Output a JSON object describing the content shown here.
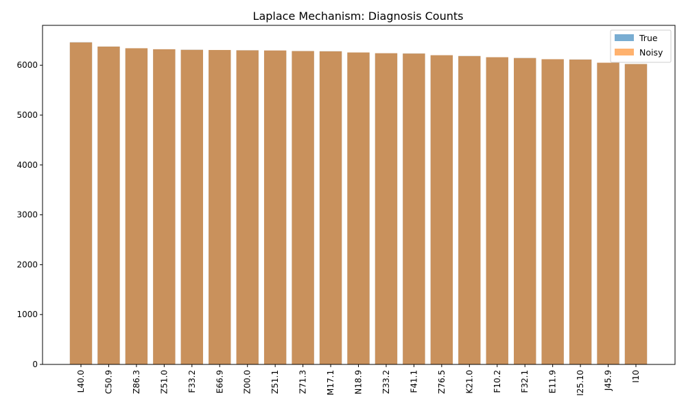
{
  "chart_data": {
    "type": "bar",
    "title": "Laplace Mechanism: Diagnosis Counts",
    "xlabel": "",
    "ylabel": "",
    "categories": [
      "L40.0",
      "C50.9",
      "Z86.3",
      "Z51.0",
      "F33.2",
      "E66.9",
      "Z00.0",
      "Z51.1",
      "Z71.3",
      "M17.1",
      "N18.9",
      "Z33.2",
      "F41.1",
      "Z76.5",
      "K21.0",
      "F10.2",
      "F32.1",
      "E11.9",
      "I25.10",
      "J45.9",
      "I10"
    ],
    "series": [
      {
        "name": "True",
        "color": "#1f77b4",
        "opacity": 0.6,
        "values": [
          6460,
          6375,
          6340,
          6320,
          6310,
          6305,
          6300,
          6295,
          6285,
          6280,
          6255,
          6240,
          6235,
          6200,
          6185,
          6160,
          6145,
          6120,
          6115,
          6050,
          6025
        ]
      },
      {
        "name": "Noisy",
        "color": "#ff7f0e",
        "opacity": 0.6,
        "values": [
          6458,
          6374,
          6341,
          6321,
          6309,
          6306,
          6299,
          6296,
          6284,
          6279,
          6256,
          6241,
          6234,
          6201,
          6184,
          6161,
          6144,
          6121,
          6114,
          6051,
          6024
        ]
      }
    ],
    "ylim": [
      0,
      6800
    ],
    "yticks": [
      0,
      1000,
      2000,
      3000,
      4000,
      5000,
      6000
    ],
    "grid": false,
    "legend_position": "top-right"
  }
}
